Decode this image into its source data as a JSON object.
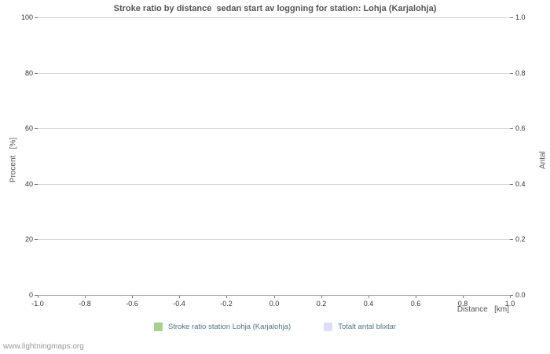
{
  "page": {
    "watermark": "www.lightningmaps.org"
  },
  "chart_data": {
    "type": "line",
    "title": "Stroke ratio by distance  sedan start av loggning for station: Lohja (Karjalohja)",
    "xlabel": "Distance   [km]",
    "ylabel_left": "Procent   [%]",
    "ylabel_right": "Antal",
    "xlim": [
      -1.0,
      1.0
    ],
    "ylim_left": [
      0,
      100
    ],
    "ylim_right": [
      0.0,
      1.0
    ],
    "x_ticks": [
      "-1.0",
      "-0.8",
      "-0.6",
      "-0.4",
      "-0.2",
      "0.0",
      "0.2",
      "0.4",
      "0.6",
      "0.8",
      "1.0"
    ],
    "y_left_ticks": [
      "0",
      "20",
      "40",
      "60",
      "80",
      "100"
    ],
    "y_right_ticks": [
      "0.0",
      "0.2",
      "0.4",
      "0.6",
      "0.8",
      "1.0"
    ],
    "grid": true,
    "legend_position": "bottom-center",
    "series": [
      {
        "name": "Stroke ratio station Lohja (Karjalohja)",
        "color": "#a8d08d",
        "x": [],
        "values": []
      },
      {
        "name": "Totalt antal blixtar",
        "color": "#dedef2",
        "x": [],
        "values": []
      }
    ],
    "legend": [
      {
        "label": "Stroke ratio station Lohja (Karjalohja)",
        "color": "#a8d08d"
      },
      {
        "label": "Totalt antal blixtar",
        "color": "#dedef2"
      }
    ]
  }
}
